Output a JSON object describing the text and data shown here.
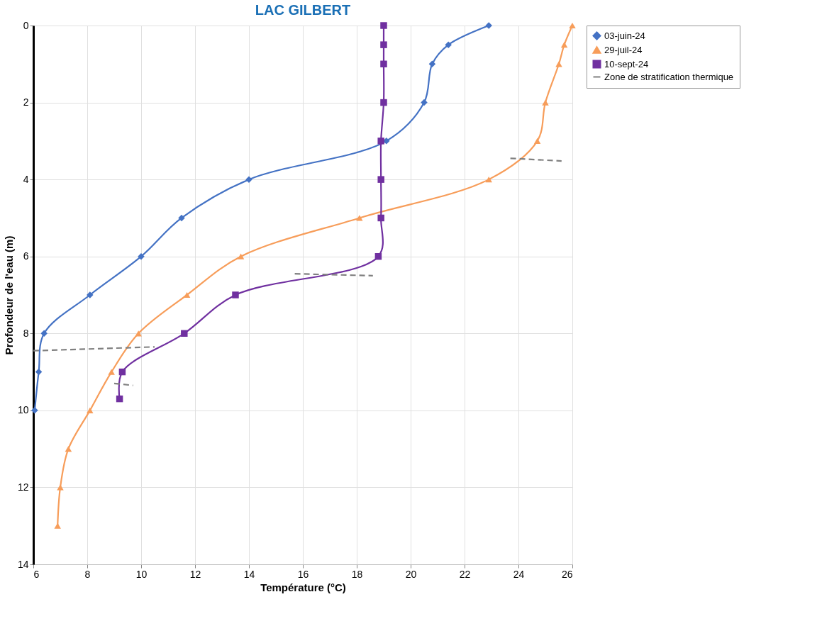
{
  "chart_data": {
    "type": "line",
    "title": "LAC GILBERT",
    "xlabel": "Température (°C)",
    "ylabel": "Profondeur de l'eau (m)",
    "xlim": [
      6,
      26
    ],
    "xticks": [
      6,
      8,
      10,
      12,
      14,
      16,
      18,
      20,
      22,
      24,
      26
    ],
    "ylim": [
      14,
      0
    ],
    "yticks": [
      0,
      2,
      4,
      6,
      8,
      10,
      12,
      14
    ],
    "grid": true,
    "legend": "right",
    "series": [
      {
        "name": "03-juin-24",
        "color": "#4472c4",
        "marker": "diamond",
        "line_style": "solid",
        "x": [
          22.9,
          21.4,
          20.8,
          20.5,
          19.1,
          14,
          11.5,
          10,
          8.1,
          6.4,
          6.2,
          6.05
        ],
        "values": [
          0,
          0.5,
          1,
          2,
          3,
          4,
          5,
          6,
          7,
          8,
          9,
          10
        ]
      },
      {
        "name": "29-juil-24",
        "color": "#f79d5a",
        "marker": "triangle",
        "line_style": "solid",
        "x": [
          26,
          25.7,
          25.5,
          25,
          24.7,
          22.9,
          18.1,
          13.7,
          11.7,
          9.9,
          8.9,
          8.1,
          7.3,
          7,
          6.9
        ],
        "values": [
          0,
          0.5,
          1,
          2,
          3,
          4,
          5,
          6,
          7,
          8,
          9,
          10,
          11,
          12,
          13
        ]
      },
      {
        "name": "10-sept-24",
        "color": "#7030a0",
        "marker": "square",
        "line_style": "solid",
        "x": [
          19,
          19,
          19,
          19,
          18.9,
          18.9,
          18.9,
          18.8,
          13.5,
          11.6,
          9.3,
          9.2
        ],
        "values": [
          0,
          0.5,
          1,
          2,
          3,
          4,
          5,
          6,
          7,
          8,
          9,
          9.7
        ]
      },
      {
        "name": "Zone de stratification thermique",
        "color": "#808080",
        "marker": "none",
        "line_style": "dashed",
        "x": [
          23.7,
          25.6,
          null,
          15.7,
          18.6,
          null,
          6,
          10.5,
          null,
          9,
          9.7
        ],
        "values": [
          3.45,
          3.52,
          null,
          6.45,
          6.5,
          null,
          8.45,
          8.35,
          null,
          9.3,
          9.35
        ]
      }
    ]
  }
}
